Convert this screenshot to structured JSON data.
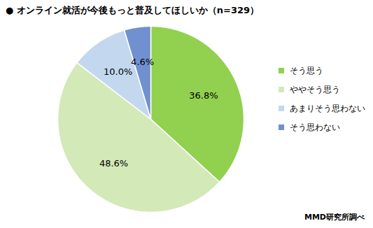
{
  "chart_data": {
    "type": "pie",
    "title": "● オンライン就活が今後もっと普及してほしいか（n=329）",
    "caption": "MMD研究所調べ",
    "categories": [
      "そう思う",
      "ややそう思う",
      "あまりそう思わない",
      "そう思わない"
    ],
    "values": [
      36.8,
      48.6,
      10.0,
      4.6
    ],
    "value_labels": [
      "36.8%",
      "48.6%",
      "10.0%",
      "4.6%"
    ],
    "colors": [
      "#92d050",
      "#d3e9b8",
      "#c3d8ef",
      "#7090d0"
    ],
    "data_labels": true,
    "legend": "right"
  }
}
